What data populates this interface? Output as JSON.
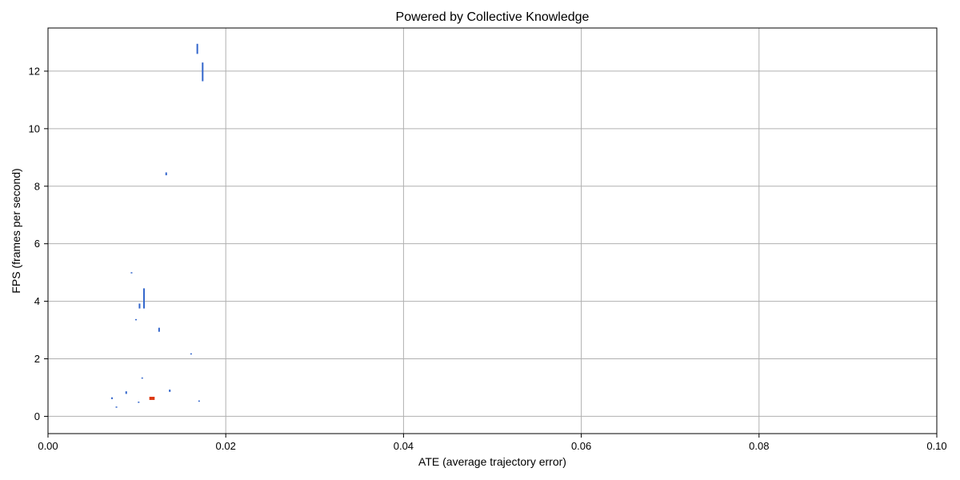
{
  "chart_data": {
    "type": "scatter",
    "title": "Powered by Collective Knowledge",
    "xlabel": "ATE (average trajectory error)",
    "ylabel": "FPS (frames per second)",
    "xlim": [
      0,
      0.1
    ],
    "ylim": [
      -0.6,
      13.5
    ],
    "xticks": [
      "0.00",
      "0.02",
      "0.04",
      "0.06",
      "0.08",
      "0.10"
    ],
    "yticks": [
      "0",
      "2",
      "4",
      "6",
      "8",
      "10",
      "12"
    ],
    "grid": true,
    "colors": {
      "default": "#3366cc",
      "highlight": "#dc3912"
    },
    "series": [
      {
        "points": [
          {
            "x": 0.0168,
            "y": 12.8,
            "ylo": 12.6,
            "yhi": 12.95
          },
          {
            "x": 0.0174,
            "y": 12.0,
            "ylo": 11.65,
            "yhi": 12.3
          },
          {
            "x": 0.0133,
            "y": 8.43,
            "ylo": 8.38,
            "yhi": 8.48
          },
          {
            "x": 0.0094,
            "y": 4.99,
            "ylo": 4.97,
            "yhi": 5.01
          },
          {
            "x": 0.0108,
            "y": 4.1,
            "ylo": 3.75,
            "yhi": 4.45
          },
          {
            "x": 0.0103,
            "y": 3.83,
            "ylo": 3.75,
            "yhi": 3.92
          },
          {
            "x": 0.0099,
            "y": 3.36,
            "ylo": 3.34,
            "yhi": 3.38
          },
          {
            "x": 0.0125,
            "y": 3.0,
            "ylo": 2.94,
            "yhi": 3.08
          },
          {
            "x": 0.0161,
            "y": 2.17,
            "ylo": 2.15,
            "yhi": 2.19
          },
          {
            "x": 0.0106,
            "y": 1.33,
            "ylo": 1.31,
            "yhi": 1.35
          },
          {
            "x": 0.0137,
            "y": 0.88,
            "ylo": 0.85,
            "yhi": 0.93
          },
          {
            "x": 0.0088,
            "y": 0.83,
            "ylo": 0.78,
            "yhi": 0.87
          },
          {
            "x": 0.0072,
            "y": 0.62,
            "ylo": 0.6,
            "yhi": 0.66
          },
          {
            "x": 0.017,
            "y": 0.53,
            "ylo": 0.51,
            "yhi": 0.55
          },
          {
            "x": 0.0102,
            "y": 0.49,
            "ylo": 0.47,
            "yhi": 0.51
          },
          {
            "x": 0.0077,
            "y": 0.32,
            "ylo": 0.3,
            "yhi": 0.34
          }
        ]
      },
      {
        "points": [
          {
            "x": 0.0117,
            "y": 0.62,
            "xlo": 0.0114,
            "xhi": 0.012,
            "ylo": 0.57,
            "yhi": 0.68
          }
        ]
      }
    ]
  }
}
